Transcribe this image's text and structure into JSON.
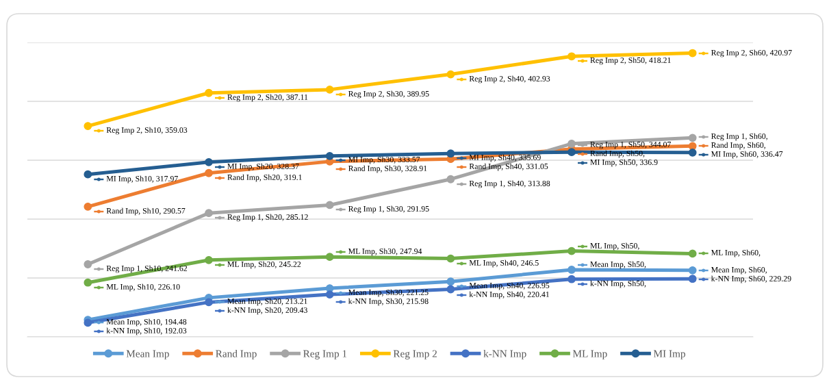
{
  "chart_data": {
    "type": "line",
    "categories": [
      null,
      null,
      null,
      null,
      null,
      null
    ],
    "ylim": [
      180,
      430
    ],
    "yticks": [
      180,
      230,
      280,
      330,
      380,
      430
    ],
    "tick_labels": false,
    "grid": "y",
    "legend": "bottom",
    "marker": "circle",
    "line_style": "solid",
    "series": [
      {
        "name": "Mean Imp",
        "color": "#5b9bd5",
        "values": [
          194.48,
          213.21,
          221.25,
          226.95,
          237,
          236.5
        ],
        "value_labels": [
          "Mean Imp, Sh10, 194.48",
          "Mean Imp, Sh20, 213.21",
          "Mean Imp, Sh30, 221.25",
          "Mean Imp, Sh40, 226.95",
          "Mean Imp, Sh50,",
          "Mean Imp, Sh60,"
        ]
      },
      {
        "name": "Rand Imp",
        "color": "#ed7d31",
        "values": [
          290.57,
          319.1,
          328.91,
          331.05,
          339.5,
          342
        ],
        "value_labels": [
          "Rand Imp, Sh10, 290.57",
          "Rand Imp, Sh20, 319.1",
          "Rand Imp, Sh30, 328.91",
          "Rand Imp, Sh40, 331.05",
          "Rand Imp, Sh50,",
          "Rand Imp, Sh60,"
        ]
      },
      {
        "name": "Reg Imp 1",
        "color": "#a5a5a5",
        "values": [
          241.62,
          285.12,
          291.95,
          313.88,
          344.07,
          349
        ],
        "value_labels": [
          "Reg Imp 1, Sh10, 241.62",
          "Reg Imp 1, Sh20, 285.12",
          "Reg Imp 1, Sh30, 291.95",
          "Reg Imp 1, Sh40, 313.88",
          "Reg Imp 1, Sh50, 344.07",
          "Reg Imp 1, Sh60,"
        ]
      },
      {
        "name": "Reg Imp 2",
        "color": "#ffc000",
        "values": [
          359.03,
          387.11,
          389.95,
          402.93,
          418.21,
          420.97
        ],
        "value_labels": [
          "Reg Imp 2, Sh10, 359.03",
          "Reg Imp 2, Sh20, 387.11",
          "Reg Imp 2, Sh30, 389.95",
          "Reg Imp 2, Sh40, 402.93",
          "Reg Imp 2, Sh50, 418.21",
          "Reg Imp 2, Sh60, 420.97"
        ]
      },
      {
        "name": "k-NN Imp",
        "color": "#4472c4",
        "values": [
          192.03,
          209.43,
          215.98,
          220.41,
          229,
          229.29
        ],
        "value_labels": [
          "k-NN Imp, Sh10, 192.03",
          "k-NN Imp, Sh20, 209.43",
          "k-NN Imp, Sh30, 215.98",
          "k-NN Imp, Sh40, 220.41",
          "k-NN Imp, Sh50,",
          "k-NN Imp, Sh60, 229.29"
        ]
      },
      {
        "name": "ML Imp",
        "color": "#70ad47",
        "values": [
          226.1,
          245.22,
          247.94,
          246.5,
          252.9,
          250.7
        ],
        "value_labels": [
          "ML Imp, Sh10, 226.10",
          "ML Imp, Sh20, 245.22",
          "ML Imp, Sh30, 247.94",
          "ML Imp, Sh40, 246.5",
          "ML Imp, Sh50,",
          "ML Imp, Sh60,"
        ]
      },
      {
        "name": "MI Imp",
        "color": "#255e91",
        "values": [
          317.97,
          328.37,
          333.57,
          335.69,
          336.9,
          336.47
        ],
        "value_labels": [
          "MI Imp, Sh10, 317.97",
          "MI Imp, Sh20, 328.37",
          "MI Imp, Sh30, 333.57",
          "MI Imp, Sh40, 335.69",
          "MI Imp, Sh50, 336.9",
          "MI Imp, Sh60, 336.47"
        ]
      }
    ]
  }
}
